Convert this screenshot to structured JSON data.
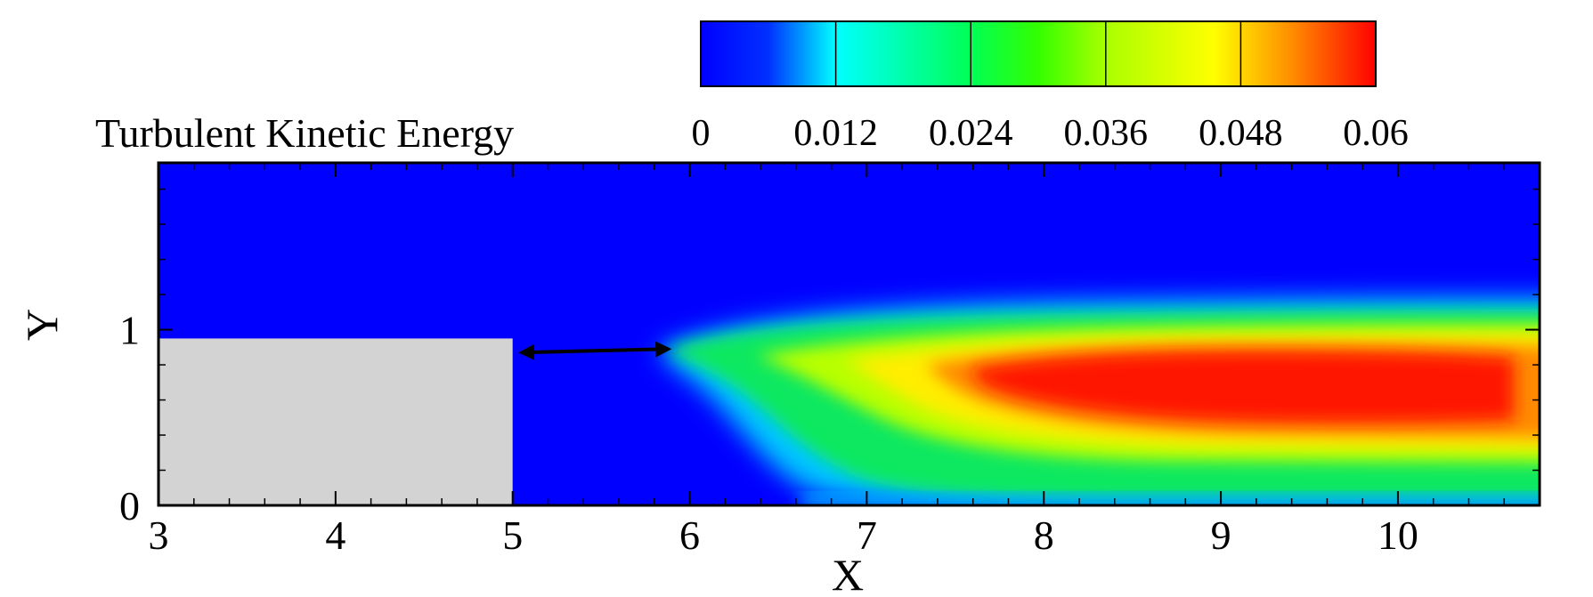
{
  "chart_data": {
    "type": "heatmap",
    "title": "",
    "xlabel": "X",
    "ylabel": "Y",
    "xlim": [
      3,
      10.8
    ],
    "ylim": [
      0,
      1.95
    ],
    "x_ticks": [
      "3",
      "4",
      "5",
      "6",
      "7",
      "8",
      "9",
      "10"
    ],
    "x_tick_values": [
      3,
      4,
      5,
      6,
      7,
      8,
      9,
      10
    ],
    "y_ticks": [
      "0",
      "1"
    ],
    "y_tick_values": [
      0,
      1
    ],
    "colorbar": {
      "title": "Turbulent Kinetic Energy",
      "min": 0,
      "max": 0.06,
      "tick_labels": [
        "0",
        "0.012",
        "0.024",
        "0.036",
        "0.048",
        "0.06"
      ],
      "tick_values": [
        0,
        0.012,
        0.024,
        0.036,
        0.048,
        0.06
      ],
      "colors": [
        "#0000ff",
        "#00ffff",
        "#00ff00",
        "#ffff00",
        "#ff0000"
      ]
    },
    "obstacle": {
      "x": [
        3,
        5
      ],
      "y": [
        0,
        0.95
      ],
      "color": "#d3d3d3"
    },
    "annotation": {
      "type": "double-arrow",
      "from": [
        5.05,
        0.87
      ],
      "to": [
        5.88,
        0.89
      ]
    },
    "field_description": "Jet-like high-TKE band downstream of the step starting near x=5.9; peak (~0.06) around x=8.5–10, y≈0.7",
    "field": {
      "x": [
        3,
        4,
        5,
        5.5,
        5.9,
        6.2,
        6.5,
        7,
        7.5,
        8,
        8.5,
        9,
        9.5,
        10,
        10.8
      ],
      "y": [
        0,
        0.1,
        0.2,
        0.3,
        0.4,
        0.5,
        0.6,
        0.7,
        0.8,
        0.9,
        1.0,
        1.1,
        1.2,
        1.4,
        1.6,
        1.95
      ],
      "peak_value": 0.06,
      "peak_location": [
        9.0,
        0.7
      ]
    }
  }
}
